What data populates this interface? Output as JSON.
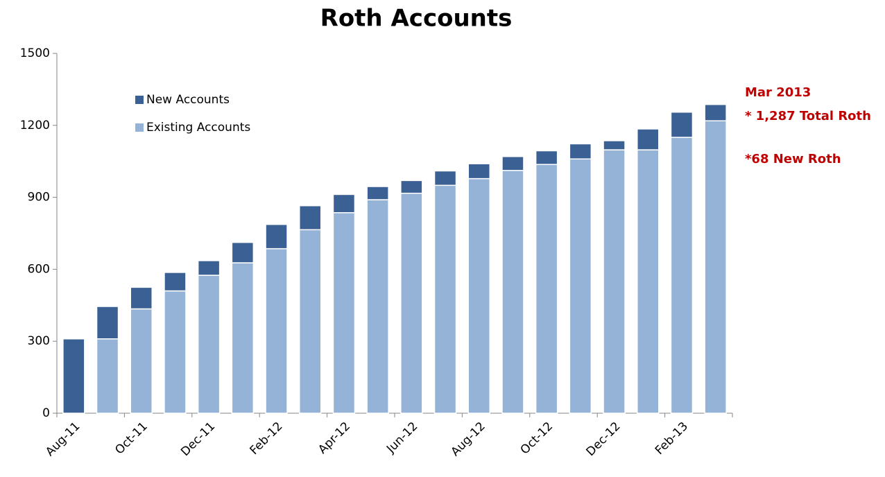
{
  "chart_data": {
    "type": "stacked_bar",
    "title": "Roth Accounts",
    "categories": [
      "Aug-11",
      null,
      "Oct-11",
      null,
      "Dec-11",
      null,
      "Feb-12",
      null,
      "Apr-12",
      null,
      "Jun-12",
      null,
      "Aug-12",
      null,
      "Oct-12",
      null,
      "Dec-12",
      null,
      "Feb-13",
      null
    ],
    "series": [
      {
        "name": "Existing Accounts",
        "color": "#95b3d7",
        "values": [
          0,
          310,
          435,
          510,
          575,
          627,
          686,
          765,
          836,
          890,
          917,
          950,
          978,
          1012,
          1037,
          1060,
          1098,
          1098,
          1150,
          1219
        ]
      },
      {
        "name": "New Accounts",
        "color": "#3a6094",
        "values": [
          310,
          135,
          90,
          77,
          61,
          85,
          101,
          100,
          76,
          55,
          53,
          60,
          62,
          58,
          57,
          63,
          38,
          87,
          105,
          68
        ]
      }
    ],
    "ylim": [
      0,
      1500
    ],
    "yticks": [
      0,
      300,
      600,
      900,
      1200,
      1500
    ],
    "grid": false,
    "legend": "upper left",
    "annotations": [
      "Mar 2013",
      "* 1,287 Total Roth",
      "*68 New Roth"
    ]
  }
}
